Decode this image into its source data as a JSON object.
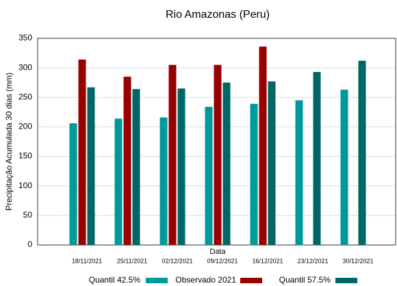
{
  "chart_data": {
    "type": "bar",
    "title": "Rio Amazonas (Peru)",
    "x_label": "Data",
    "y_label": "Precipitação Acumulada 30 dias (mm)",
    "categories": [
      "18/11/2021",
      "25/11/2021",
      "02/12/2021",
      "09/12/2021",
      "16/12/2021",
      "23/12/2021",
      "30/12/2021"
    ],
    "series": [
      {
        "name": "Quantil 42.5%",
        "color": "#009999",
        "values": [
          206,
          214,
          216,
          234,
          239,
          245,
          263
        ]
      },
      {
        "name": "Observado 2021",
        "color": "#990000",
        "values": [
          314,
          285,
          305,
          305,
          336,
          null,
          null
        ]
      },
      {
        "name": "Quantil 57.5%",
        "color": "#006666",
        "values": [
          267,
          264,
          265,
          275,
          277,
          293,
          312
        ]
      }
    ],
    "ylim": [
      0,
      350
    ],
    "yticks": [
      0,
      50,
      100,
      150,
      200,
      250,
      300,
      350
    ],
    "grid": true,
    "legend": "bottom"
  }
}
